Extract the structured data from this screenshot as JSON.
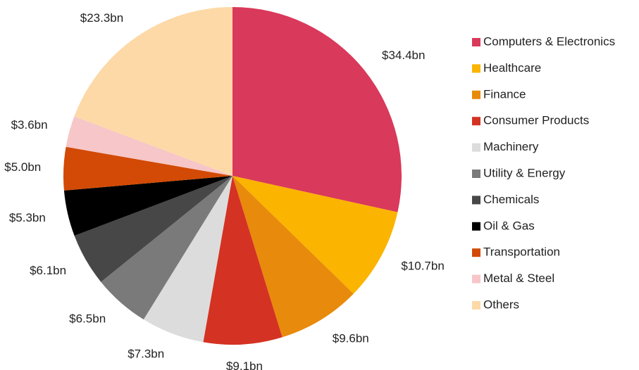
{
  "chart_data": {
    "type": "pie",
    "categories": [
      "Computers & Electronics",
      "Healthcare",
      "Finance",
      "Consumer Products",
      "Machinery",
      "Utility & Energy",
      "Chemicals",
      "Oil & Gas",
      "Transportation",
      "Metal & Steel",
      "Others"
    ],
    "values": [
      34.4,
      10.7,
      9.6,
      9.1,
      7.3,
      6.5,
      6.1,
      5.3,
      5.0,
      3.6,
      23.3
    ],
    "value_labels": [
      "$34.4bn",
      "$10.7bn",
      "$9.6bn",
      "$9.1bn",
      "$7.3bn",
      "$6.5bn",
      "$6.1bn",
      "$5.3bn",
      "$5.0bn",
      "$3.6bn",
      "$23.3bn"
    ],
    "colors": [
      "#d9395a",
      "#fbb400",
      "#e88a0b",
      "#d43223",
      "#dcdcdc",
      "#7a7a7a",
      "#474747",
      "#000000",
      "#d24a05",
      "#f6c6c8",
      "#fdd9a8"
    ],
    "legend": "right"
  }
}
